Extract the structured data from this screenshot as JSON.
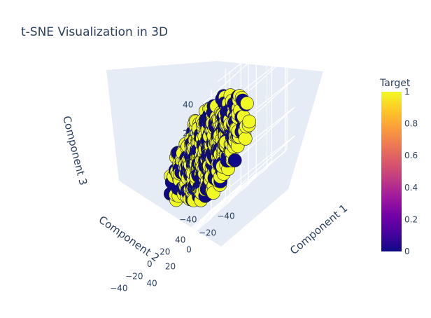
{
  "chart_data": {
    "type": "scatter",
    "title": "t-SNE Visualization in 3D",
    "axes": {
      "x": {
        "label": "Component 1",
        "range": [
          -50,
          50
        ],
        "ticks": [
          -40,
          -20,
          0,
          20,
          40
        ]
      },
      "y": {
        "label": "Component 2",
        "range": [
          -50,
          50
        ],
        "ticks": [
          -40,
          -20,
          0,
          20,
          40
        ]
      },
      "z": {
        "label": "Component 3",
        "range": [
          -45,
          45
        ],
        "ticks": [
          -40,
          -20,
          0,
          20,
          40
        ]
      }
    },
    "colorbar": {
      "title": "Target",
      "range": [
        0,
        1
      ],
      "ticks": [
        "0",
        "0.2",
        "0.4",
        "0.6",
        "0.8",
        "1"
      ],
      "colorscale": [
        "#0d0887",
        "#46039f",
        "#7201a8",
        "#9c179e",
        "#bd3786",
        "#d8576b",
        "#ed7953",
        "#fb9f3a",
        "#fdca26",
        "#f0f921"
      ]
    },
    "series": [
      {
        "target": 0,
        "color": "#0d0887"
      },
      {
        "target": 1,
        "color": "#f0f921"
      }
    ],
    "point_count": 900,
    "point_spread": 28,
    "grid": true
  }
}
